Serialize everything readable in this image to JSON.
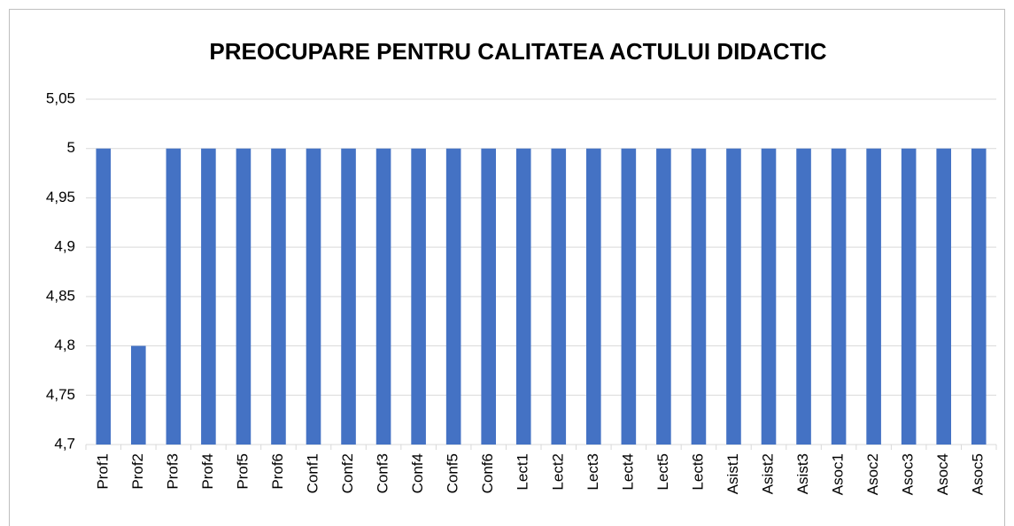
{
  "chart_data": {
    "type": "bar",
    "title": "PREOCUPARE PENTRU CALITATEA ACTULUI DIDACTIC",
    "categories": [
      "Prof1",
      "Prof2",
      "Prof3",
      "Prof4",
      "Prof5",
      "Prof6",
      "Conf1",
      "Conf2",
      "Conf3",
      "Conf4",
      "Conf5",
      "Conf6",
      "Lect1",
      "Lect2",
      "Lect3",
      "Lect4",
      "Lect5",
      "Lect6",
      "Asist1",
      "Asist2",
      "Asist3",
      "Asoc1",
      "Asoc2",
      "Asoc3",
      "Asoc4",
      "Asoc5"
    ],
    "values": [
      5,
      4.8,
      5,
      5,
      5,
      5,
      5,
      5,
      5,
      5,
      5,
      5,
      5,
      5,
      5,
      5,
      5,
      5,
      5,
      5,
      5,
      5,
      5,
      5,
      5,
      5
    ],
    "color": "#4472c4",
    "ylim": [
      4.7,
      5.05
    ],
    "yticks": [
      {
        "value": 4.7,
        "label": "4,7"
      },
      {
        "value": 4.75,
        "label": "4,75"
      },
      {
        "value": 4.8,
        "label": "4,8"
      },
      {
        "value": 4.85,
        "label": "4,85"
      },
      {
        "value": 4.9,
        "label": "4,9"
      },
      {
        "value": 4.95,
        "label": "4,95"
      },
      5,
      {
        "value": 5.05,
        "label": "5,05"
      }
    ],
    "grid": true
  }
}
